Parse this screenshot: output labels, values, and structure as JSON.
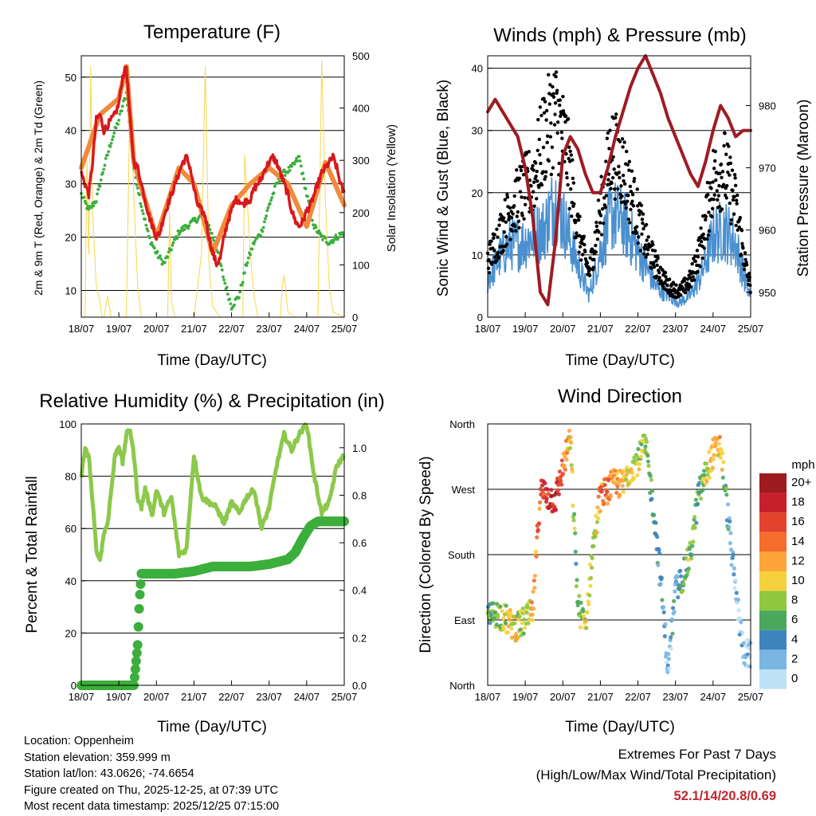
{
  "colors": {
    "temp_red": "#d7191c",
    "temp_orange": "#f08a3c",
    "dewpoint_green": "#3cae3c",
    "solar_yellow": "#f7d64a",
    "wind_blue": "#4a90d0",
    "gust_black": "#000000",
    "pressure_maroon": "#9e1c22",
    "rh_lightgreen": "#8cc84b",
    "precip_green": "#3cae3c",
    "extremes_red": "#c0262d"
  },
  "time_ticks": [
    "18/07",
    "19/07",
    "20/07",
    "21/07",
    "22/07",
    "23/07",
    "24/07",
    "25/07"
  ],
  "chart_data": [
    {
      "id": "temperature",
      "type": "line",
      "title": "Temperature (F)",
      "xlabel": "Time (Day/UTC)",
      "ylabel": "2m & 9m T (Red, Orange) & 2m Td (Green)",
      "y2label": "Solar Insolation (Yellow)",
      "x_range": [
        0,
        7
      ],
      "ylim": [
        5,
        54
      ],
      "y_ticks": [
        10,
        20,
        30,
        40,
        50
      ],
      "y2lim": [
        0,
        500
      ],
      "y2_ticks": [
        0,
        100,
        200,
        300,
        400,
        500
      ],
      "series": [
        {
          "name": "2m T",
          "color": "#d7191c",
          "x": [
            0,
            0.1,
            0.2,
            0.3,
            0.4,
            0.5,
            0.6,
            0.7,
            0.8,
            0.9,
            1.0,
            1.1,
            1.2,
            1.3,
            1.4,
            1.5,
            1.6,
            1.7,
            1.8,
            1.9,
            2.0,
            2.1,
            2.2,
            2.3,
            2.4,
            2.5,
            2.6,
            2.7,
            2.8,
            2.9,
            3.0,
            3.1,
            3.2,
            3.3,
            3.4,
            3.5,
            3.6,
            3.7,
            3.8,
            3.9,
            4.0,
            4.1,
            4.2,
            4.3,
            4.4,
            4.5,
            4.6,
            4.7,
            4.8,
            4.9,
            5.0,
            5.1,
            5.2,
            5.3,
            5.4,
            5.5,
            5.6,
            5.7,
            5.8,
            5.9,
            6.0,
            6.1,
            6.2,
            6.3,
            6.4,
            6.5,
            6.6,
            6.7,
            6.8,
            6.9,
            7.0
          ],
          "values": [
            32,
            30,
            28,
            34,
            42,
            43,
            40,
            41,
            42,
            43,
            45,
            50,
            52,
            42,
            34,
            33,
            30,
            27,
            24,
            22,
            20,
            21,
            24,
            26,
            28,
            30,
            32,
            34,
            35,
            33,
            29,
            26,
            25,
            24,
            20,
            17,
            15,
            16,
            20,
            23,
            25,
            27,
            27,
            26,
            27,
            27,
            29,
            30,
            31,
            33,
            34,
            35,
            34,
            32,
            30,
            28,
            25,
            23,
            22,
            23,
            25,
            26,
            28,
            30,
            32,
            33,
            34,
            35,
            33,
            30,
            28
          ]
        },
        {
          "name": "9m T",
          "color": "#f08a3c",
          "x": [
            0,
            0.5,
            1.0,
            1.2,
            1.4,
            2.0,
            2.6,
            3.0,
            3.5,
            4.0,
            4.5,
            5.0,
            5.5,
            6.0,
            6.5,
            7.0
          ],
          "values": [
            33,
            43,
            46,
            52,
            34,
            20,
            33,
            30,
            17,
            26,
            30,
            33,
            30,
            22,
            34,
            26
          ]
        },
        {
          "name": "2m Td",
          "color": "#3cae3c",
          "x": [
            0,
            0.2,
            0.4,
            0.6,
            0.8,
            1.0,
            1.2,
            1.4,
            1.6,
            1.8,
            2.0,
            2.2,
            2.4,
            2.6,
            2.8,
            3.0,
            3.2,
            3.4,
            3.6,
            3.8,
            4.0,
            4.2,
            4.4,
            4.6,
            4.8,
            5.0,
            5.2,
            5.4,
            5.6,
            5.8,
            6.0,
            6.2,
            6.4,
            6.6,
            6.8,
            7.0
          ],
          "values": [
            28,
            25,
            27,
            33,
            38,
            42,
            47,
            33,
            26,
            20,
            17,
            15,
            18,
            21,
            22,
            23,
            24,
            22,
            18,
            12,
            7,
            9,
            15,
            19,
            21,
            26,
            30,
            32,
            33,
            35,
            28,
            22,
            20,
            19,
            20,
            21
          ]
        },
        {
          "name": "Solar Insolation",
          "color": "#f7d64a",
          "axis": "y2",
          "x": [
            0,
            0.1,
            0.15,
            0.2,
            0.25,
            0.3,
            0.4,
            0.5,
            0.55,
            0.6,
            0.7,
            0.8,
            1.0,
            1.2,
            1.3,
            1.4,
            1.5,
            1.6,
            1.8,
            2.0,
            2.3,
            2.35,
            2.4,
            2.5,
            2.7,
            3.0,
            3.2,
            3.3,
            3.4,
            3.5,
            3.7,
            4.0,
            4.3,
            4.35,
            4.5,
            4.6,
            4.7,
            5.0,
            5.3,
            5.35,
            5.4,
            5.5,
            5.7,
            6.0,
            6.3,
            6.4,
            6.5,
            6.6,
            6.7,
            7.0
          ],
          "values": [
            0,
            0,
            300,
            120,
            480,
            200,
            60,
            30,
            0,
            0,
            40,
            0,
            0,
            0,
            440,
            230,
            60,
            0,
            0,
            0,
            0,
            200,
            30,
            0,
            0,
            0,
            120,
            480,
            100,
            20,
            0,
            0,
            0,
            310,
            120,
            40,
            0,
            0,
            0,
            60,
            80,
            10,
            0,
            0,
            0,
            490,
            220,
            60,
            10,
            0
          ]
        }
      ]
    },
    {
      "id": "winds",
      "type": "scatter",
      "title": "Winds (mph) & Pressure (mb)",
      "xlabel": "Time (Day/UTC)",
      "ylabel": "Sonic Wind & Gust (Blue, Black)",
      "y2label": "Station Pressure (Maroon)",
      "x_range": [
        0,
        7
      ],
      "ylim": [
        0,
        42
      ],
      "y_ticks": [
        0,
        10,
        20,
        30,
        40
      ],
      "y2lim": [
        946,
        988
      ],
      "y2_ticks": [
        950,
        960,
        970,
        980
      ],
      "series": [
        {
          "name": "Sonic Wind",
          "color": "#4a90d0",
          "x": [
            0,
            0.3,
            0.6,
            0.9,
            1.2,
            1.5,
            1.8,
            2.1,
            2.4,
            2.7,
            3.0,
            3.3,
            3.6,
            3.9,
            4.2,
            4.5,
            4.8,
            5.1,
            5.4,
            5.7,
            6.0,
            6.3,
            6.6,
            6.9,
            7.0
          ],
          "values": [
            5,
            8,
            10,
            10,
            11,
            12,
            16,
            12,
            7,
            3,
            9,
            14,
            13,
            10,
            7,
            4,
            3,
            2,
            3,
            6,
            11,
            12,
            10,
            4,
            3
          ]
        },
        {
          "name": "Gust",
          "color": "#000000",
          "x": [
            0,
            0.3,
            0.6,
            0.9,
            1.2,
            1.5,
            1.8,
            2.1,
            2.4,
            2.7,
            3.0,
            3.3,
            3.6,
            3.9,
            4.2,
            4.5,
            4.8,
            5.1,
            5.4,
            5.7,
            6.0,
            6.3,
            6.6,
            6.9,
            7.0
          ],
          "values": [
            9,
            13,
            17,
            20,
            22,
            29,
            33,
            27,
            14,
            7,
            17,
            27,
            24,
            18,
            12,
            8,
            5,
            4,
            6,
            12,
            22,
            24,
            18,
            7,
            5
          ]
        },
        {
          "name": "Station Pressure",
          "color": "#9e1c22",
          "axis": "y2",
          "x": [
            0,
            0.2,
            0.4,
            0.6,
            0.8,
            1.0,
            1.2,
            1.4,
            1.6,
            1.8,
            2.0,
            2.2,
            2.4,
            2.6,
            2.8,
            3.0,
            3.2,
            3.4,
            3.6,
            3.8,
            4.0,
            4.2,
            4.4,
            4.6,
            4.8,
            5.0,
            5.2,
            5.4,
            5.6,
            5.8,
            6.0,
            6.2,
            6.4,
            6.6,
            6.8,
            7.0
          ],
          "values": [
            979,
            981,
            979,
            977,
            975,
            970,
            962,
            950,
            948,
            958,
            972,
            975,
            973,
            969,
            966,
            966,
            970,
            975,
            979,
            983,
            986,
            988,
            985,
            982,
            978,
            975,
            972,
            969,
            967,
            971,
            976,
            980,
            978,
            975,
            976,
            976
          ]
        }
      ]
    },
    {
      "id": "humidity",
      "type": "line",
      "title": "Relative Humidity (%) & Precipitation (in)",
      "xlabel": "Time (Day/UTC)",
      "ylabel": "Percent & Total Rainfall",
      "x_range": [
        0,
        7
      ],
      "ylim": [
        0,
        100
      ],
      "y_ticks": [
        0,
        20,
        40,
        60,
        80,
        100
      ],
      "y2lim": [
        0,
        1.1
      ],
      "y2_ticks": [
        "0.0",
        "0.2",
        "0.4",
        "0.6",
        "0.8",
        "1.0"
      ],
      "series": [
        {
          "name": "Relative Humidity",
          "color": "#8cc84b",
          "x": [
            0,
            0.1,
            0.2,
            0.3,
            0.4,
            0.5,
            0.6,
            0.7,
            0.8,
            0.9,
            1.0,
            1.1,
            1.2,
            1.3,
            1.4,
            1.5,
            1.6,
            1.7,
            1.8,
            1.9,
            2.0,
            2.2,
            2.4,
            2.6,
            2.8,
            3.0,
            3.2,
            3.4,
            3.6,
            3.8,
            4.0,
            4.2,
            4.4,
            4.6,
            4.8,
            5.0,
            5.2,
            5.4,
            5.6,
            5.8,
            6.0,
            6.2,
            6.4,
            6.6,
            6.8,
            7.0
          ],
          "values": [
            80,
            90,
            88,
            70,
            52,
            48,
            58,
            62,
            75,
            88,
            92,
            85,
            96,
            98,
            88,
            72,
            68,
            75,
            70,
            65,
            75,
            66,
            72,
            50,
            52,
            88,
            72,
            70,
            68,
            62,
            70,
            66,
            72,
            75,
            60,
            68,
            84,
            96,
            90,
            96,
            100,
            80,
            66,
            70,
            84,
            88
          ]
        },
        {
          "name": "Total Precipitation",
          "color": "#3cae3c",
          "axis": "y2",
          "x": [
            0,
            1.0,
            1.4,
            1.5,
            1.55,
            1.6,
            2.0,
            2.5,
            3.0,
            3.5,
            4.0,
            4.5,
            5.0,
            5.5,
            5.7,
            5.9,
            6.1,
            6.3,
            6.6,
            7.0
          ],
          "values": [
            0,
            0,
            0,
            0.17,
            0.36,
            0.47,
            0.47,
            0.47,
            0.48,
            0.5,
            0.5,
            0.5,
            0.51,
            0.53,
            0.56,
            0.62,
            0.67,
            0.69,
            0.69,
            0.69
          ]
        }
      ]
    },
    {
      "id": "direction",
      "type": "scatter",
      "title": "Wind Direction",
      "xlabel": "Time (Day/UTC)",
      "ylabel": "Direction (Colored By Speed)",
      "x_range": [
        0,
        7
      ],
      "ylim": [
        0,
        360
      ],
      "y_tick_labels": [
        "North",
        "East",
        "South",
        "West",
        "North"
      ],
      "legend": {
        "title": "mph",
        "labels": [
          "20+",
          "18",
          "16",
          "14",
          "12",
          "10",
          "8",
          "6",
          "4",
          "2",
          "0"
        ],
        "colors": [
          "#9e1b1f",
          "#c7202d",
          "#e3432b",
          "#f46d2b",
          "#fda538",
          "#f5d13b",
          "#8fc73e",
          "#4aa85c",
          "#3d84bf",
          "#79b6e2",
          "#bfe2f6"
        ]
      },
      "series": [
        {
          "name": "Direction",
          "x": [
            0,
            0.2,
            0.4,
            0.6,
            0.8,
            1.0,
            1.2,
            1.4,
            1.6,
            1.8,
            2.0,
            2.2,
            2.4,
            2.6,
            2.8,
            3.0,
            3.2,
            3.4,
            3.6,
            3.8,
            4.0,
            4.2,
            4.4,
            4.6,
            4.8,
            5.0,
            5.2,
            5.4,
            5.6,
            5.8,
            6.0,
            6.2,
            6.4,
            6.6,
            6.8,
            7.0
          ],
          "values": [
            90,
            100,
            95,
            85,
            80,
            90,
            100,
            270,
            260,
            255,
            300,
            340,
            110,
            80,
            190,
            260,
            270,
            280,
            275,
            300,
            310,
            330,
            250,
            150,
            20,
            130,
            150,
            180,
            260,
            290,
            320,
            330,
            230,
            130,
            50,
            40
          ],
          "speeds": [
            6,
            7,
            8,
            10,
            9,
            8,
            12,
            14,
            17,
            18,
            14,
            10,
            6,
            9,
            8,
            13,
            14,
            12,
            11,
            10,
            9,
            8,
            5,
            3,
            2,
            4,
            6,
            7,
            6,
            9,
            12,
            11,
            4,
            2,
            1,
            2
          ]
        }
      ]
    }
  ],
  "info": {
    "location": "Location: Oppenheim",
    "elevation": "Station elevation: 359.999 m",
    "latlon": "Station lat/lon: 43.0626; -74.6654",
    "created": "Figure created on Thu, 2025-12-25, at 07:39 UTC",
    "recent": "Most recent data timestamp: 2025/12/25 07:15:00"
  },
  "extremes": {
    "title": "Extremes For Past 7 Days",
    "subtitle": "(High/Low/Max Wind/Total Precipitation)",
    "values": "52.1/14/20.8/0.69"
  }
}
